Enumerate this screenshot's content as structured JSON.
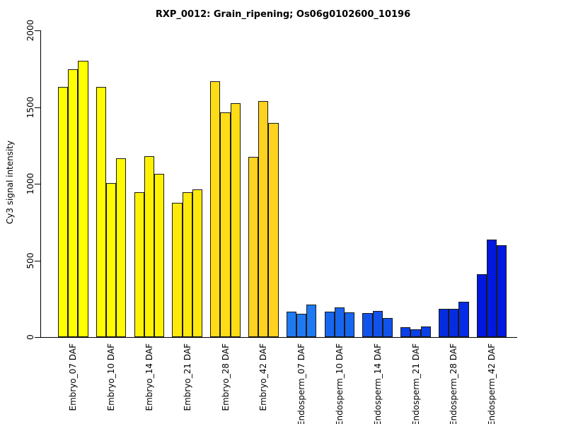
{
  "chart_data": {
    "type": "bar",
    "title": "RXP_0012: Grain_ripening; Os06g0102600_10196",
    "ylabel": "Cy3 signal intensity",
    "xlabel": "",
    "ylim": [
      0,
      2000
    ],
    "yticks": [
      0,
      500,
      1000,
      1500,
      2000
    ],
    "grid": false,
    "legend_position": "none",
    "bars_per_group": 3,
    "categories": [
      "Embryo_07 DAF",
      "Embryo_10 DAF",
      "Embryo_14 DAF",
      "Embryo_21 DAF",
      "Embryo_28 DAF",
      "Embryo_42 DAF",
      "Endosperm_07 DAF",
      "Endosperm_10 DAF",
      "Endosperm_14 DAF",
      "Endosperm_21 DAF",
      "Endosperm_28 DAF",
      "Endosperm_42 DAF"
    ],
    "values": [
      [
        1630,
        1745,
        1800
      ],
      [
        1630,
        1005,
        1165
      ],
      [
        945,
        1180,
        1065
      ],
      [
        875,
        945,
        965
      ],
      [
        1670,
        1465,
        1525
      ],
      [
        1175,
        1540,
        1395
      ],
      [
        165,
        150,
        210
      ],
      [
        165,
        195,
        160
      ],
      [
        155,
        170,
        125
      ],
      [
        65,
        50,
        70
      ],
      [
        185,
        185,
        230
      ],
      [
        410,
        635,
        600
      ]
    ],
    "group_colors": [
      "#FFFF00",
      "#FFFB00",
      "#FFF200",
      "#FFE80C",
      "#FFDD16",
      "#FFD220",
      "#1E7AF3",
      "#1766EF",
      "#1152EB",
      "#0B3FE7",
      "#062CE3",
      "#0018DF"
    ],
    "bar_border_color": "#1a1a1a",
    "axis_color": "#000000",
    "background_color": "#FFFFFF"
  }
}
